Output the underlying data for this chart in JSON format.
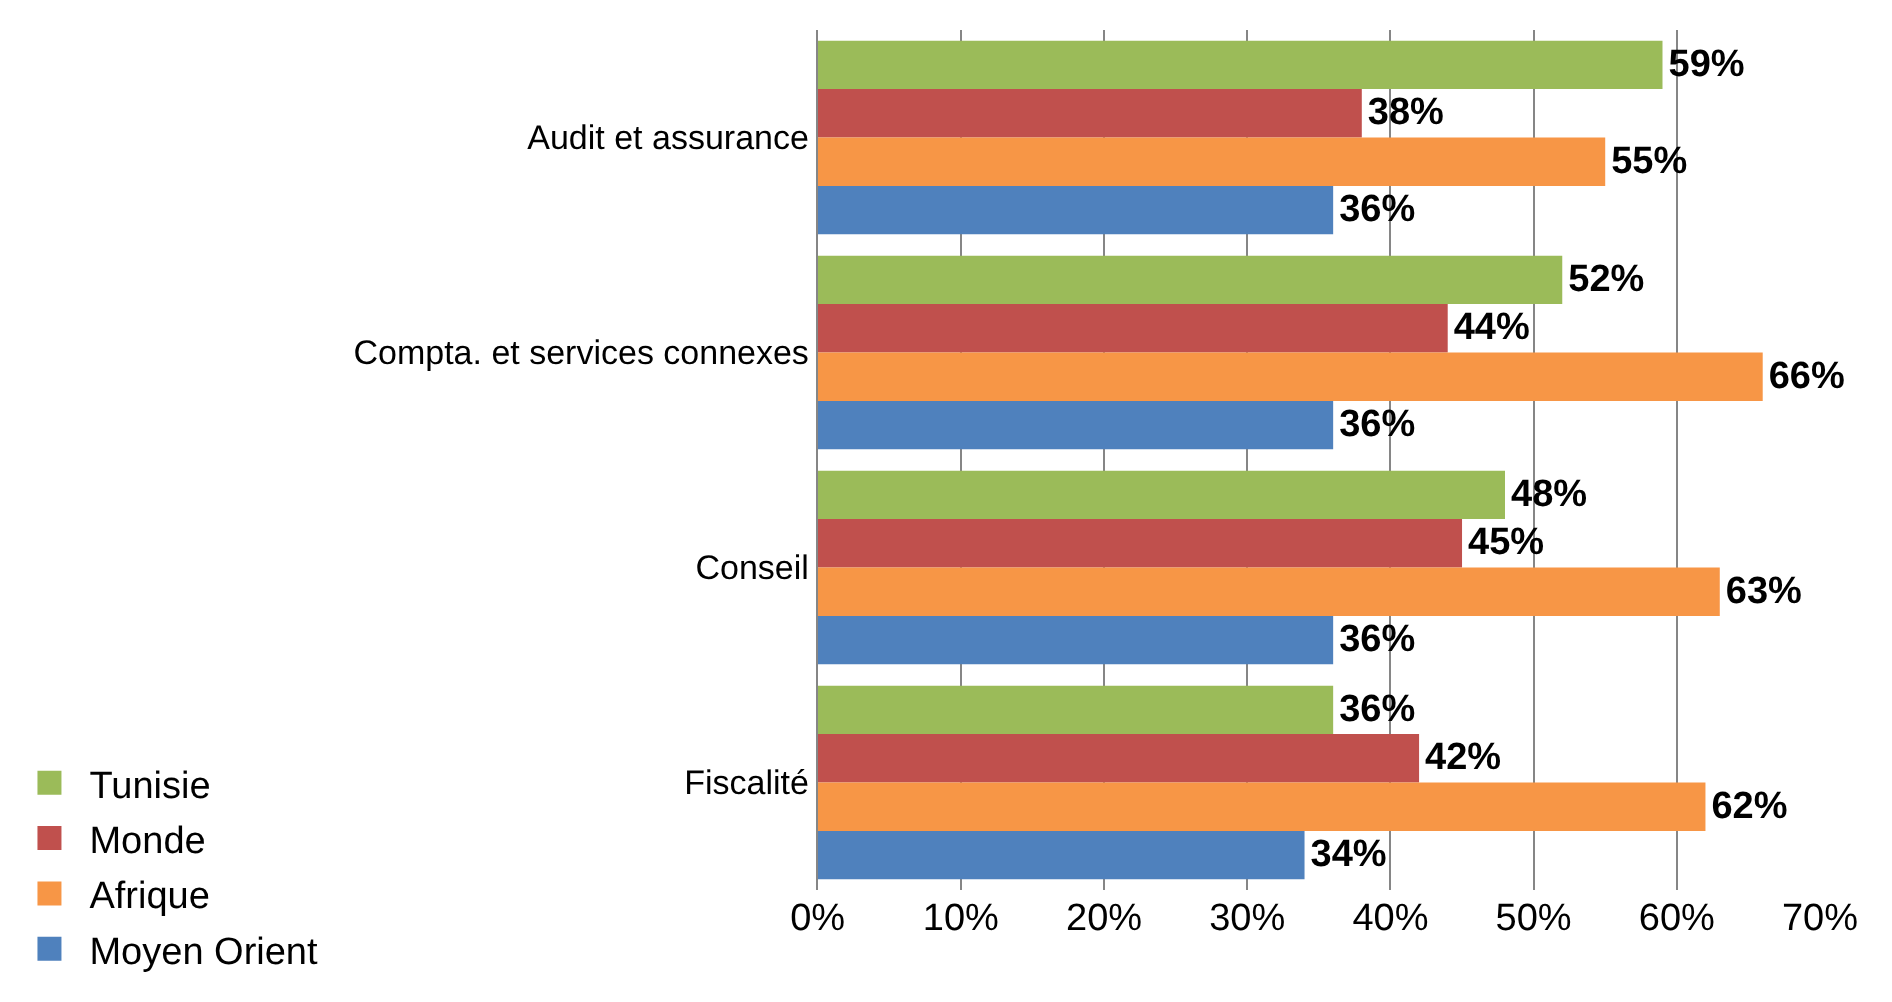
{
  "chart_data": {
    "type": "bar",
    "orientation": "horizontal",
    "categories": [
      "Audit et assurance",
      "Compta. et services connexes",
      "Conseil",
      "Fiscalité"
    ],
    "series": [
      {
        "name": "Tunisie",
        "color": "#9bbb59",
        "values": [
          59,
          52,
          48,
          36
        ],
        "value_labels": [
          "59%",
          "52%",
          "48%",
          "36%"
        ]
      },
      {
        "name": "Monde",
        "color": "#c0504d",
        "values": [
          38,
          44,
          45,
          42
        ],
        "value_labels": [
          "38%",
          "44%",
          "45%",
          "42%"
        ]
      },
      {
        "name": "Afrique",
        "color": "#f79646",
        "values": [
          55,
          66,
          63,
          62
        ],
        "value_labels": [
          "55%",
          "66%",
          "63%",
          "62%"
        ]
      },
      {
        "name": "Moyen Orient",
        "color": "#4f81bd",
        "values": [
          36,
          36,
          36,
          34
        ],
        "value_labels": [
          "36%",
          "36%",
          "36%",
          "34%"
        ]
      }
    ],
    "xlim": [
      0,
      70
    ],
    "xticks": [
      {
        "value": 0,
        "label": "0%"
      },
      {
        "value": 10,
        "label": "10%"
      },
      {
        "value": 20,
        "label": "20%"
      },
      {
        "value": 30,
        "label": "30%"
      },
      {
        "value": 40,
        "label": "40%"
      },
      {
        "value": 50,
        "label": "50%"
      },
      {
        "value": 60,
        "label": "60%"
      },
      {
        "value": 70,
        "label": "70%"
      }
    ],
    "grid": "x",
    "legend": "bottom left"
  }
}
